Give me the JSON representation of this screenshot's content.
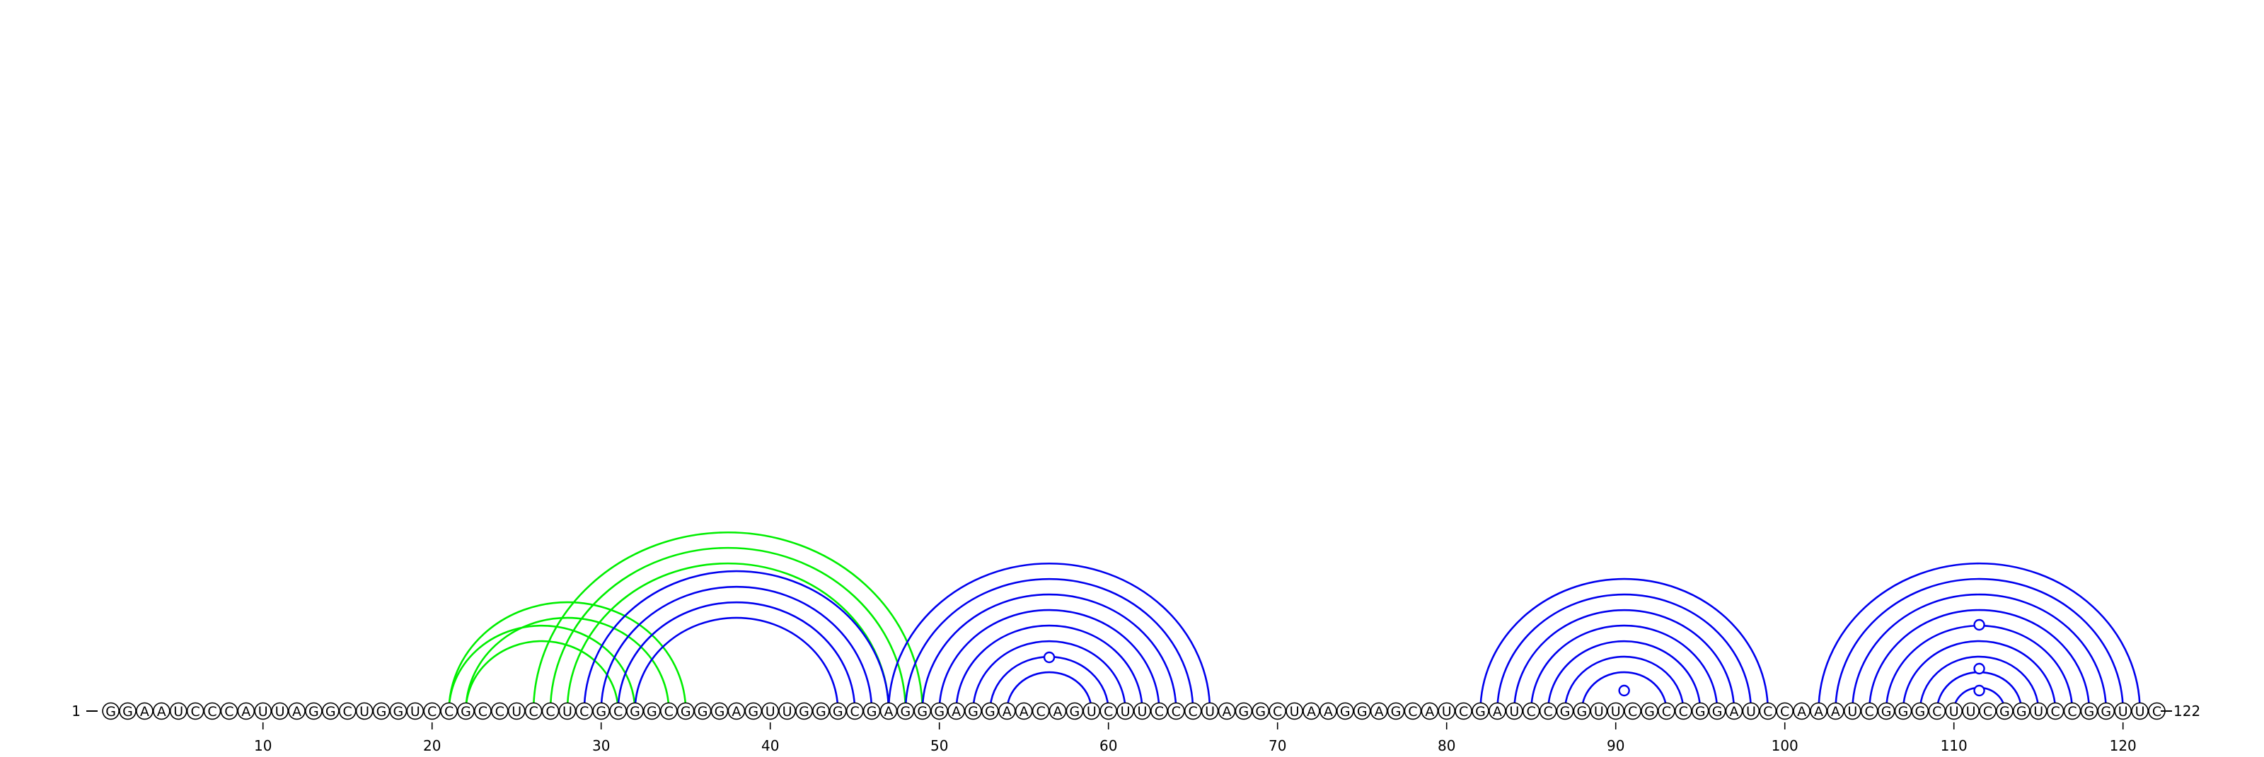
{
  "diagram": {
    "type": "rna-arc-diagram",
    "sequence": "GGAAUCCCAUUAGGCUGGUCCGCCUCCUCGCGGCGGGAGUUGGGCGAGGGAGGAACAGUCUUCCCUAGGCUAAGGAGCAUCGAUCCGGUUCGCCGGAUCCAAAUCGGGCUUCGGUCCGGUUC",
    "length": 122,
    "start_label": "1",
    "end_label": "122",
    "ticks": [
      10,
      20,
      30,
      40,
      50,
      60,
      70,
      80,
      90,
      100,
      110,
      120
    ],
    "colors": {
      "primary_arc": "#0000ee",
      "alternate_arc": "#00ee00",
      "nucleotide_stroke": "#000000",
      "nucleotide_fill": "#ffffff",
      "text": "#000000"
    },
    "primary_pairs": [
      [
        29,
        47
      ],
      [
        30,
        46
      ],
      [
        31,
        45
      ],
      [
        32,
        44
      ],
      [
        47,
        66
      ],
      [
        48,
        65
      ],
      [
        49,
        64
      ],
      [
        50,
        63
      ],
      [
        51,
        62
      ],
      [
        52,
        61
      ],
      [
        53,
        60
      ],
      [
        54,
        59
      ],
      [
        82,
        99
      ],
      [
        83,
        98
      ],
      [
        84,
        97
      ],
      [
        85,
        96
      ],
      [
        86,
        95
      ],
      [
        87,
        94
      ],
      [
        88,
        93
      ],
      [
        102,
        121
      ],
      [
        103,
        120
      ],
      [
        104,
        119
      ],
      [
        105,
        118
      ],
      [
        106,
        117
      ],
      [
        107,
        116
      ],
      [
        108,
        115
      ],
      [
        109,
        114
      ],
      [
        110,
        113
      ]
    ],
    "alternate_pairs": [
      [
        21,
        35
      ],
      [
        22,
        34
      ],
      [
        21,
        32
      ],
      [
        22,
        31
      ],
      [
        26,
        49
      ],
      [
        27,
        48
      ],
      [
        28,
        47
      ]
    ],
    "hairpin_markers": [
      56.5,
      90.5,
      111.5,
      111.5,
      111.5
    ]
  }
}
